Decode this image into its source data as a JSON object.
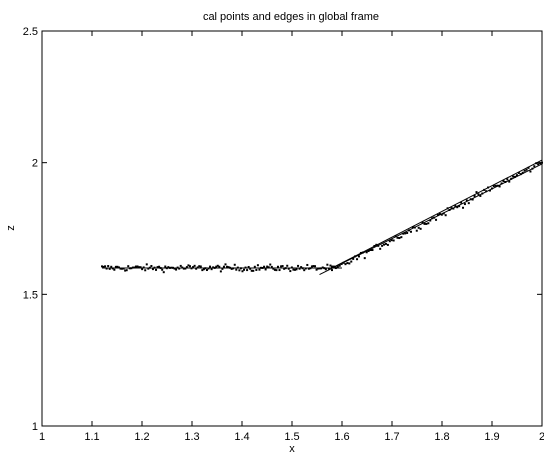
{
  "chart_data": {
    "type": "scatter",
    "title": "cal points and edges in global frame",
    "xlabel": "x",
    "ylabel": "z",
    "xlim": [
      1,
      2
    ],
    "ylim": [
      1,
      2.5
    ],
    "x_ticks": [
      "1",
      "1.1",
      "1.2",
      "1.3",
      "1.4",
      "1.5",
      "1.6",
      "1.7",
      "1.8",
      "1.9",
      "2"
    ],
    "y_ticks": [
      "1",
      "1.5",
      "2",
      "2.5"
    ],
    "grid": false,
    "colors": {
      "points": "#000000",
      "lines": "#000000",
      "axes": "#000000"
    },
    "points_segment_1": {
      "x_range": [
        1.12,
        1.58
      ],
      "z_level": 1.6,
      "count": 150,
      "noise": 0.012
    },
    "points_segment_2": {
      "x_range": [
        1.58,
        2.0
      ],
      "z_start": 1.59,
      "z_end": 2.0,
      "count": 110,
      "noise": 0.013
    },
    "edge_lines": [
      {
        "x": [
          1.12,
          1.6
        ],
        "z": [
          1.6,
          1.6
        ]
      },
      {
        "x": [
          1.555,
          2.0
        ],
        "z": [
          1.575,
          1.995
        ]
      },
      {
        "x": [
          1.58,
          2.0
        ],
        "z": [
          1.6,
          2.01
        ]
      }
    ]
  }
}
